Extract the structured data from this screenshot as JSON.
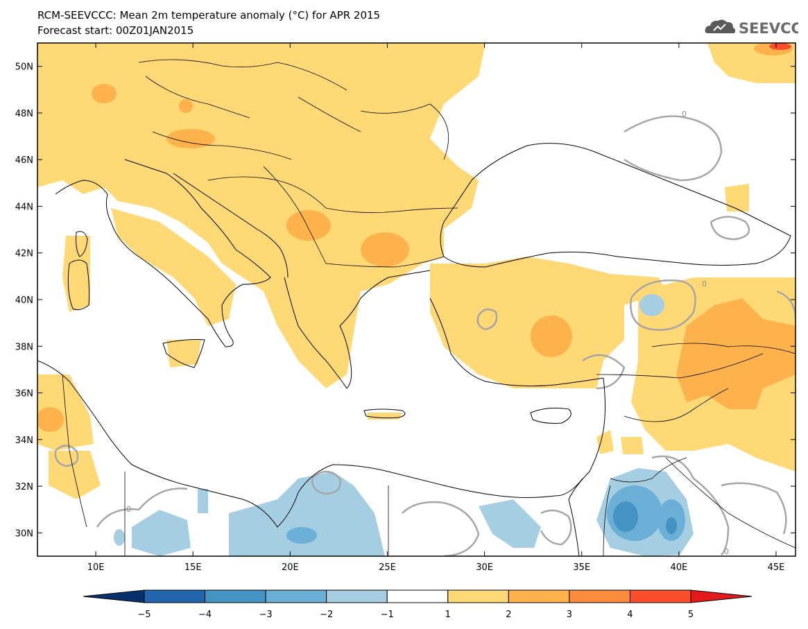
{
  "header": {
    "title": "RCM-SEEVCCC: Mean 2m temperature anomaly (°C) for APR 2015",
    "subtitle": "Forecast start: 00Z01JAN2015"
  },
  "logo": {
    "text": "SEEVCCC",
    "icon": "cloud-icon"
  },
  "map": {
    "lon_range": [
      7,
      46
    ],
    "lat_range": [
      29,
      51
    ],
    "lat_ticks": [
      {
        "value": 50,
        "label": "50N"
      },
      {
        "value": 48,
        "label": "48N"
      },
      {
        "value": 46,
        "label": "46N"
      },
      {
        "value": 44,
        "label": "44N"
      },
      {
        "value": 42,
        "label": "42N"
      },
      {
        "value": 40,
        "label": "40N"
      },
      {
        "value": 38,
        "label": "38N"
      },
      {
        "value": 36,
        "label": "36N"
      },
      {
        "value": 34,
        "label": "34N"
      },
      {
        "value": 32,
        "label": "32N"
      },
      {
        "value": 30,
        "label": "30N"
      }
    ],
    "lon_ticks": [
      {
        "value": 10,
        "label": "10E"
      },
      {
        "value": 15,
        "label": "15E"
      },
      {
        "value": 20,
        "label": "20E"
      },
      {
        "value": 25,
        "label": "25E"
      },
      {
        "value": 30,
        "label": "30E"
      },
      {
        "value": 35,
        "label": "35E"
      },
      {
        "value": 40,
        "label": "40E"
      },
      {
        "value": 45,
        "label": "45E"
      }
    ],
    "contour_label": "0",
    "colors": {
      "land_outline": "#000000",
      "contour": "#a6a6a6"
    }
  },
  "colorbar": {
    "segments": [
      {
        "from": -5,
        "to": -4,
        "color": "#2166ac"
      },
      {
        "from": -4,
        "to": -3,
        "color": "#4393c3"
      },
      {
        "from": -3,
        "to": -2,
        "color": "#6baed6"
      },
      {
        "from": -2,
        "to": -1,
        "color": "#a6cee3"
      },
      {
        "from": -1,
        "to": 1,
        "color": "#ffffff"
      },
      {
        "from": 1,
        "to": 2,
        "color": "#fed976"
      },
      {
        "from": 2,
        "to": 3,
        "color": "#feb24c"
      },
      {
        "from": 3,
        "to": 4,
        "color": "#fd8d3c"
      },
      {
        "from": 4,
        "to": 5,
        "color": "#fc4e2a"
      }
    ],
    "under_color": "#08306b",
    "over_color": "#e31a1c",
    "labels": [
      "−5",
      "−4",
      "−3",
      "−2",
      "−1",
      "1",
      "2",
      "3",
      "4",
      "5"
    ]
  }
}
